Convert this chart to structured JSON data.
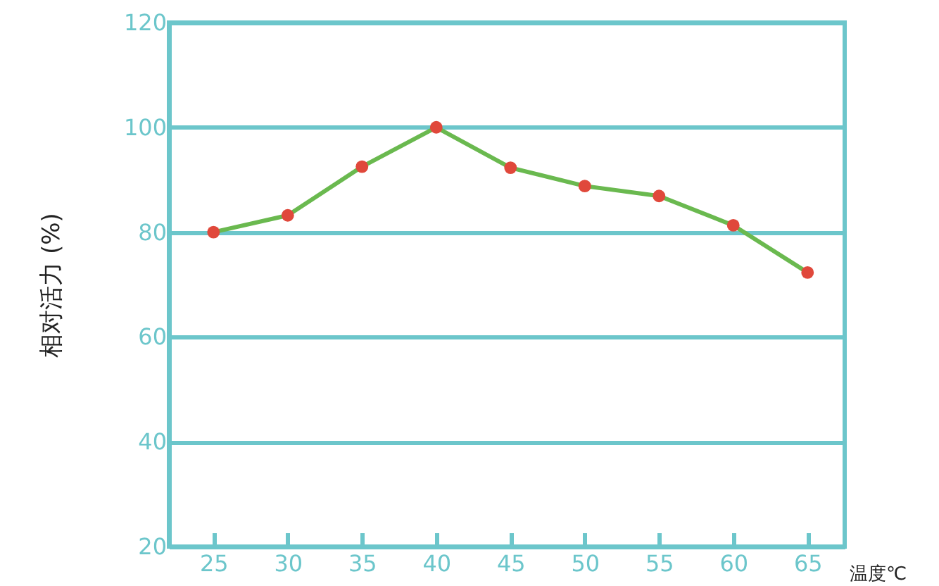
{
  "chart_data": {
    "type": "line",
    "xlabel": "温度℃",
    "ylabel": "相对活力 (%)",
    "x": [
      25,
      30,
      35,
      40,
      45,
      50,
      55,
      60,
      65
    ],
    "series": [
      {
        "color": "#6ab94f",
        "values": [
          80,
          83.2,
          92.5,
          100,
          92.3,
          88.8,
          86.9,
          81.3,
          72.3
        ]
      },
      {
        "type": "scatter",
        "marker": "circle",
        "color": "#e0483b",
        "values": [
          80,
          83.2,
          92.5,
          100,
          92.3,
          88.8,
          86.9,
          81.3,
          72.3
        ]
      }
    ],
    "xlim": [
      22,
      67.5
    ],
    "xticks": [
      25,
      30,
      35,
      40,
      45,
      50,
      55,
      60,
      65
    ],
    "ylim": [
      20,
      120
    ],
    "yticks": [
      20,
      40,
      60,
      80,
      100,
      120
    ],
    "grid": "y",
    "line_style": "solid"
  }
}
